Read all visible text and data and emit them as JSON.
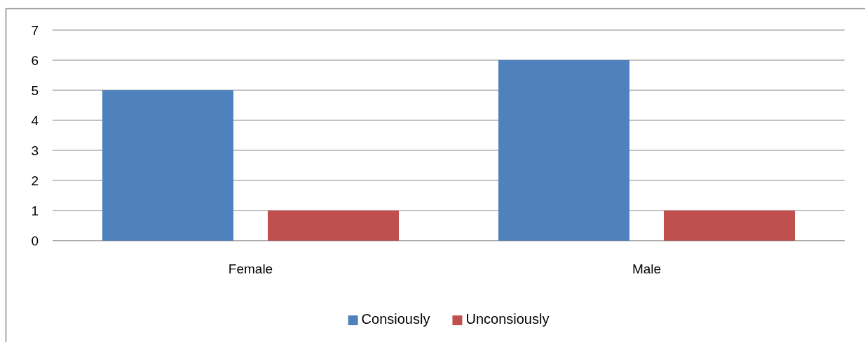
{
  "chart_data": {
    "type": "bar",
    "categories": [
      "Female",
      "Male"
    ],
    "series": [
      {
        "name": "Consiously",
        "color": "#4f81bd",
        "values": [
          5,
          6
        ]
      },
      {
        "name": "Unconsiously",
        "color": "#c0504d",
        "values": [
          1,
          1
        ]
      }
    ],
    "ylim": [
      0,
      7
    ],
    "yticks": [
      0,
      1,
      2,
      3,
      4,
      5,
      6,
      7
    ],
    "grid": "y",
    "legend": "bottom"
  }
}
